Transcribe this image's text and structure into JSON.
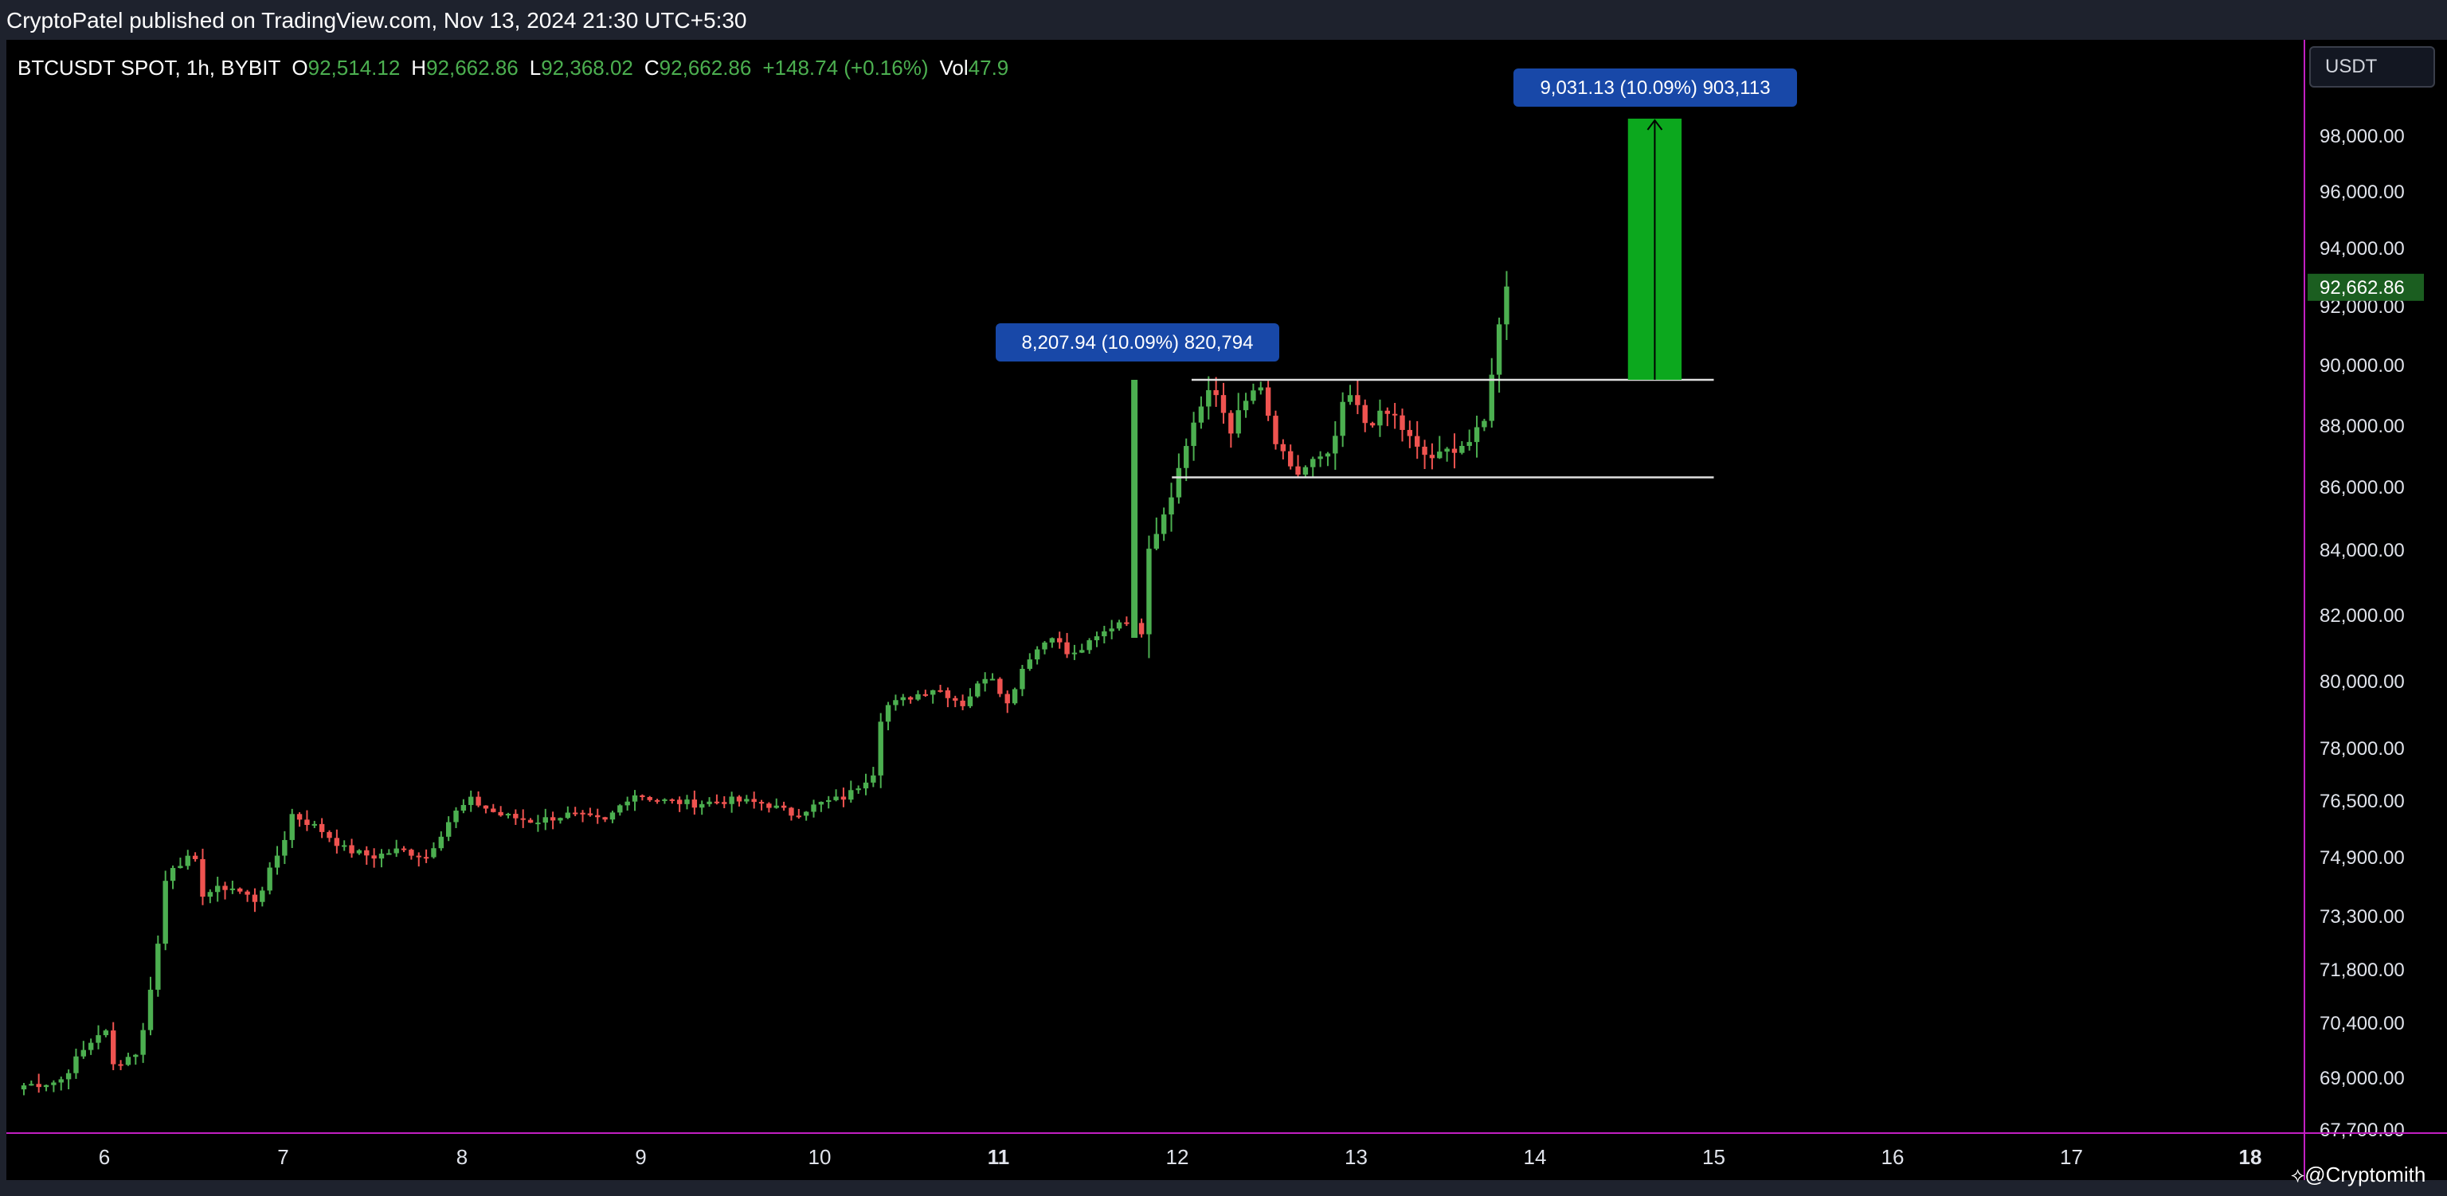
{
  "header": {
    "publisher_line": "CryptoPatel published on TradingView.com, Nov 13, 2024 21:30 UTC+5:30"
  },
  "legend": {
    "symbol": "BTCUSDT SPOT, 1h, BYBIT",
    "open_label": "O",
    "open": "92,514.12",
    "high_label": "H",
    "high": "92,662.86",
    "low_label": "L",
    "low": "92,368.02",
    "close_label": "C",
    "close": "92,662.86",
    "change": "+148.74 (+0.16%)",
    "vol_label": "Vol",
    "vol": "47.9"
  },
  "currency_button": "USDT",
  "watermark": "@Cryptomith",
  "colors": {
    "up": "#4caf50",
    "down": "#ef5350",
    "background": "#000000",
    "projection": "#0ca81e",
    "annotation_box": "#1848a8",
    "price_tag": "#1b5e20",
    "axis_border": "#c21fc2"
  },
  "chart_data": {
    "type": "candlestick",
    "timeframe": "1h",
    "x_range": [
      5.5,
      18.3
    ],
    "y_axis": {
      "ticks": [
        67700,
        69000,
        70400,
        71800,
        73300,
        74900,
        76500,
        78000,
        80000,
        82000,
        84000,
        86000,
        88000,
        90000,
        92000,
        94000,
        96000,
        98000
      ],
      "tick_labels": [
        "67,700.00",
        "69,000.00",
        "70,400.00",
        "71,800.00",
        "73,300.00",
        "74,900.00",
        "76,500.00",
        "78,000.00",
        "80,000.00",
        "82,000.00",
        "84,000.00",
        "86,000.00",
        "88,000.00",
        "90,000.00",
        "92,000.00",
        "94,000.00",
        "96,000.00",
        "98,000.00"
      ],
      "position": "right"
    },
    "x_axis": {
      "ticks": [
        6,
        7,
        8,
        9,
        10,
        11,
        12,
        13,
        14,
        15,
        16,
        17,
        18
      ],
      "tick_labels": [
        "6",
        "7",
        "8",
        "9",
        "10",
        "11",
        "12",
        "13",
        "14",
        "15",
        "16",
        "17",
        "18"
      ],
      "bold_ticks": [
        "11",
        "18"
      ]
    },
    "price_series": [
      {
        "d": 5.55,
        "p": 68800
      },
      {
        "d": 5.75,
        "p": 68900
      },
      {
        "d": 5.85,
        "p": 69500
      },
      {
        "d": 6.0,
        "p": 70300
      },
      {
        "d": 6.05,
        "p": 69300
      },
      {
        "d": 6.2,
        "p": 69700
      },
      {
        "d": 6.3,
        "p": 72500
      },
      {
        "d": 6.35,
        "p": 74600
      },
      {
        "d": 6.5,
        "p": 74900
      },
      {
        "d": 6.55,
        "p": 73900
      },
      {
        "d": 6.7,
        "p": 74100
      },
      {
        "d": 6.85,
        "p": 73700
      },
      {
        "d": 7.0,
        "p": 75300
      },
      {
        "d": 7.05,
        "p": 76100
      },
      {
        "d": 7.2,
        "p": 75700
      },
      {
        "d": 7.35,
        "p": 75100
      },
      {
        "d": 7.5,
        "p": 74900
      },
      {
        "d": 7.65,
        "p": 75100
      },
      {
        "d": 7.8,
        "p": 74900
      },
      {
        "d": 7.95,
        "p": 76100
      },
      {
        "d": 8.05,
        "p": 76500
      },
      {
        "d": 8.2,
        "p": 76100
      },
      {
        "d": 8.4,
        "p": 75900
      },
      {
        "d": 8.6,
        "p": 76100
      },
      {
        "d": 8.8,
        "p": 75900
      },
      {
        "d": 8.95,
        "p": 76700
      },
      {
        "d": 9.1,
        "p": 76500
      },
      {
        "d": 9.3,
        "p": 76400
      },
      {
        "d": 9.5,
        "p": 76500
      },
      {
        "d": 9.7,
        "p": 76400
      },
      {
        "d": 9.85,
        "p": 76100
      },
      {
        "d": 10.0,
        "p": 76400
      },
      {
        "d": 10.15,
        "p": 76600
      },
      {
        "d": 10.3,
        "p": 77300
      },
      {
        "d": 10.35,
        "p": 79200
      },
      {
        "d": 10.5,
        "p": 79500
      },
      {
        "d": 10.65,
        "p": 79800
      },
      {
        "d": 10.8,
        "p": 79300
      },
      {
        "d": 10.95,
        "p": 80300
      },
      {
        "d": 11.05,
        "p": 79300
      },
      {
        "d": 11.15,
        "p": 80600
      },
      {
        "d": 11.3,
        "p": 81400
      },
      {
        "d": 11.4,
        "p": 80700
      },
      {
        "d": 11.55,
        "p": 81300
      },
      {
        "d": 11.7,
        "p": 81900
      },
      {
        "d": 11.8,
        "p": 81500
      },
      {
        "d": 11.82,
        "p": 84000
      },
      {
        "d": 11.9,
        "p": 84800
      },
      {
        "d": 12.0,
        "p": 86400
      },
      {
        "d": 12.1,
        "p": 88300
      },
      {
        "d": 12.2,
        "p": 89200
      },
      {
        "d": 12.3,
        "p": 87900
      },
      {
        "d": 12.45,
        "p": 89400
      },
      {
        "d": 12.55,
        "p": 87400
      },
      {
        "d": 12.65,
        "p": 86300
      },
      {
        "d": 12.75,
        "p": 86800
      },
      {
        "d": 12.85,
        "p": 86900
      },
      {
        "d": 12.95,
        "p": 89100
      },
      {
        "d": 13.05,
        "p": 88100
      },
      {
        "d": 13.2,
        "p": 88400
      },
      {
        "d": 13.35,
        "p": 87100
      },
      {
        "d": 13.45,
        "p": 86900
      },
      {
        "d": 13.55,
        "p": 87300
      },
      {
        "d": 13.65,
        "p": 87500
      },
      {
        "d": 13.72,
        "p": 88100
      },
      {
        "d": 13.78,
        "p": 90800
      },
      {
        "d": 13.85,
        "p": 92514
      },
      {
        "d": 13.88,
        "p": 92663
      }
    ],
    "spike": {
      "d": 11.76,
      "high": 89500,
      "low": 81300
    },
    "horizontal_levels": [
      {
        "price": 89500,
        "from": 12.08,
        "to": 15.0
      },
      {
        "price": 86300,
        "from": 11.97,
        "to": 15.0
      }
    ],
    "annotations": [
      {
        "text": "8,207.94 (10.09%) 820,794",
        "d": 11.76,
        "price": 89500
      },
      {
        "text": "9,031.13 (10.09%) 903,113",
        "d": 14.67,
        "price": 98600
      }
    ],
    "projection": {
      "from_price": 89500,
      "to_price": 98600,
      "d_start": 14.52,
      "d_end": 14.82
    },
    "last_price": {
      "value": 92662.86,
      "label": "92,662.86"
    }
  }
}
